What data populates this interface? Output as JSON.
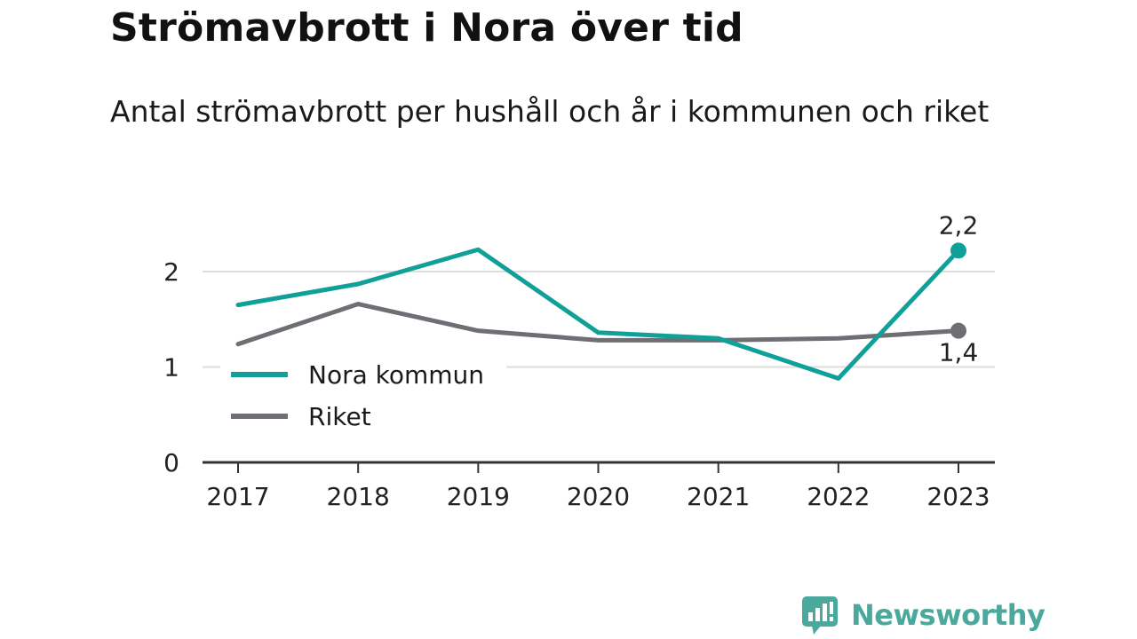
{
  "title": "Strömavbrott i Nora över tid",
  "subtitle": "Antal strömavbrott per hushåll och år i kommunen och riket",
  "brand": {
    "name": "Newsworthy"
  },
  "colors": {
    "nora": "#11a098",
    "riket": "#6e6e74",
    "grid": "#dddddd",
    "axis": "#333333"
  },
  "chart_data": {
    "type": "line",
    "x": [
      "2017",
      "2018",
      "2019",
      "2020",
      "2021",
      "2022",
      "2023"
    ],
    "ylim": [
      0,
      2.4
    ],
    "yticks": [
      "0",
      "1",
      "2"
    ],
    "grid": true,
    "legend_position": "middle-left",
    "series": [
      {
        "name": "Nora kommun",
        "values": [
          1.65,
          1.87,
          2.23,
          1.36,
          1.3,
          0.88,
          2.22
        ],
        "end_label": "2,2"
      },
      {
        "name": "Riket",
        "values": [
          1.24,
          1.66,
          1.38,
          1.28,
          1.28,
          1.3,
          1.38
        ],
        "end_label": "1,4"
      }
    ]
  }
}
